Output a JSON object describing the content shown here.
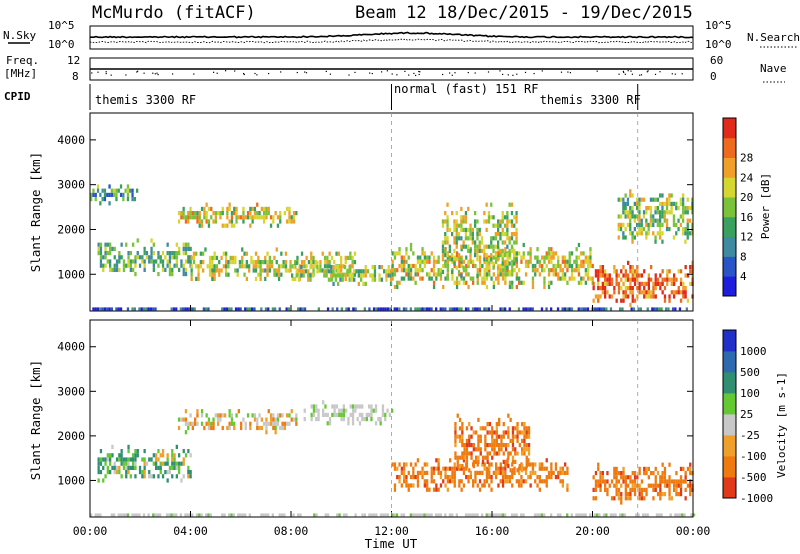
{
  "header": {
    "station": "McMurdo (fitACF)",
    "beam_date": "Beam 12  18/Dec/2015 - 19/Dec/2015"
  },
  "status_panels": {
    "nsky_label": "N.Sky",
    "nsky_ticks": [
      "10^5",
      "10^0"
    ],
    "nsearch_label": "N.Search",
    "freq_label_top": "Freq.",
    "freq_label_unit": "[MHz]",
    "freq_ticks": [
      "12",
      "8"
    ],
    "nave_label": "Nave",
    "nave_ticks": [
      "60",
      "0"
    ],
    "cpid_label": "CPID",
    "cpid_modes": [
      {
        "text": "themis 3300 RF",
        "start_hour": 0,
        "end_hour": 12
      },
      {
        "text": "normal (fast) 151 RF",
        "start_hour": 12,
        "end_hour": 21.8
      },
      {
        "text": "themis 3300 RF",
        "start_hour": 21.8,
        "end_hour": 24
      }
    ]
  },
  "chart_data": [
    {
      "type": "heatmap",
      "name": "power",
      "ylabel": "Slant Range [km]",
      "ylim": [
        180,
        4600
      ],
      "yticks": [
        "1000",
        "2000",
        "3000",
        "4000"
      ],
      "colorbar_label": "Power [dB]",
      "colorbar_ticks": [
        "4",
        "8",
        "12",
        "16",
        "20",
        "24",
        "28"
      ],
      "colorscale": [
        "#1e1edc",
        "#2a55c8",
        "#3f8aa0",
        "#3aa060",
        "#7ac23a",
        "#d6d630",
        "#f0a02a",
        "#ee6a1e",
        "#e02a1a"
      ],
      "scan_range_km": [
        180,
        3550
      ],
      "echo_bands": [
        {
          "start_hour": 0.3,
          "end_hour": 4.0,
          "range_km": [
            1000,
            1800
          ],
          "level": 0.45
        },
        {
          "start_hour": 0.0,
          "end_hour": 2.0,
          "range_km": [
            2600,
            3100
          ],
          "level": 0.35
        },
        {
          "start_hour": 3.5,
          "end_hour": 8.2,
          "range_km": [
            2100,
            2600
          ],
          "level": 0.6
        },
        {
          "start_hour": 4.0,
          "end_hour": 10.5,
          "range_km": [
            900,
            1600
          ],
          "level": 0.55
        },
        {
          "start_hour": 8.0,
          "end_hour": 12.0,
          "range_km": [
            800,
            1300
          ],
          "level": 0.5
        },
        {
          "start_hour": 12.0,
          "end_hour": 20.0,
          "range_km": [
            700,
            1700
          ],
          "level": 0.6
        },
        {
          "start_hour": 14.0,
          "end_hour": 17.0,
          "range_km": [
            1000,
            2600
          ],
          "level": 0.55
        },
        {
          "start_hour": 20.0,
          "end_hour": 24.0,
          "range_km": [
            350,
            1300
          ],
          "level": 0.85
        },
        {
          "start_hour": 21.0,
          "end_hour": 24.0,
          "range_km": [
            1700,
            2900
          ],
          "level": 0.5
        }
      ]
    },
    {
      "type": "heatmap",
      "name": "velocity",
      "xlabel": "Time UT",
      "xticks": [
        "00:00",
        "04:00",
        "08:00",
        "12:00",
        "16:00",
        "20:00",
        "00:00"
      ],
      "xlim_hours": [
        0,
        24
      ],
      "ylabel": "Slant Range [km]",
      "ylim": [
        180,
        4600
      ],
      "yticks": [
        "1000",
        "2000",
        "3000",
        "4000"
      ],
      "colorbar_label": "Velocity [m s-1]",
      "colorbar_ticks": [
        "1000",
        "500",
        "100",
        "25",
        "-25",
        "-100",
        "-500",
        "-1000"
      ],
      "colorscale": [
        "#2030c8",
        "#2e6ab0",
        "#2f8f70",
        "#64c832",
        "#c8c8c8",
        "#f0a02a",
        "#ee7a10",
        "#e03a1a"
      ],
      "echo_bands": [
        {
          "start_hour": 0.3,
          "end_hour": 4.0,
          "range_km": [
            1000,
            1800
          ],
          "class": "toward-slow"
        },
        {
          "start_hour": 3.5,
          "end_hour": 8.2,
          "range_km": [
            2100,
            2600
          ],
          "class": "mixed"
        },
        {
          "start_hour": 8.5,
          "end_hour": 12.0,
          "range_km": [
            2300,
            2800
          ],
          "class": "ground"
        },
        {
          "start_hour": 12.0,
          "end_hour": 19.0,
          "range_km": [
            800,
            1500
          ],
          "class": "away"
        },
        {
          "start_hour": 14.5,
          "end_hour": 17.5,
          "range_km": [
            1200,
            2500
          ],
          "class": "away"
        },
        {
          "start_hour": 20.0,
          "end_hour": 24.0,
          "range_km": [
            500,
            1400
          ],
          "class": "away"
        }
      ]
    }
  ]
}
